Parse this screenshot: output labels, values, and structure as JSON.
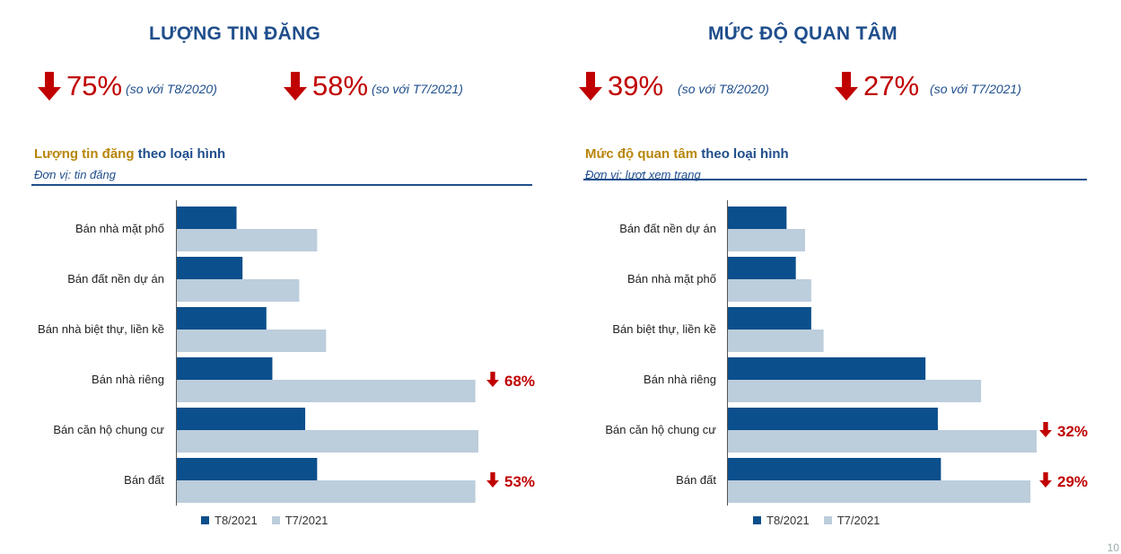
{
  "colors": {
    "t8": "#0b4f8c",
    "t7": "#bccddc",
    "accent_red": "#c00000",
    "title_blue": "#1f4e8c",
    "title_gold": "#b8860b"
  },
  "left": {
    "heading": "LƯỢNG TIN ĐĂNG",
    "stats": [
      {
        "value": "75%",
        "note": "(so với T8/2020)",
        "icon": "down-arrow-icon"
      },
      {
        "value": "58%",
        "note": "(so với T7/2021)",
        "icon": "down-arrow-icon"
      }
    ],
    "chart_title_part1": "Lượng tin đăng",
    "chart_title_part2": " theo loại hình",
    "unit": "Đơn vị: tin đăng"
  },
  "right": {
    "heading": "MỨC ĐỘ QUAN TÂM",
    "stats": [
      {
        "value": "39%",
        "note": "(so với T8/2020)",
        "icon": "down-arrow-icon"
      },
      {
        "value": "27%",
        "note": "(so với T7/2021)",
        "icon": "down-arrow-icon"
      }
    ],
    "chart_title_part1": "Mức độ quan tâm",
    "chart_title_part2": " theo loại hình",
    "unit": "Đơn vị: lượt xem trang"
  },
  "legend": {
    "t8": "T8/2021",
    "t7": "T7/2021"
  },
  "chart_data": [
    {
      "type": "bar",
      "orientation": "horizontal",
      "categories": [
        "Bán nhà mặt phố",
        "Bán đất nền dự án",
        "Bán nhà biệt thự, liền kề",
        "Bán nhà riêng",
        "Bán căn hộ chung cư",
        "Bán đất"
      ],
      "series": [
        {
          "name": "T8/2021",
          "values": [
            20,
            22,
            30,
            32,
            43,
            47
          ]
        },
        {
          "name": "T7/2021",
          "values": [
            47,
            41,
            50,
            100,
            101,
            100
          ]
        }
      ],
      "xlim": [
        0,
        101
      ],
      "grid": false,
      "legend": "bottom",
      "annotations": [
        {
          "category": "Bán nhà riêng",
          "text": "68%",
          "icon": "down-arrow-icon"
        },
        {
          "category": "Bán đất",
          "text": "53%",
          "icon": "down-arrow-icon"
        }
      ]
    },
    {
      "type": "bar",
      "orientation": "horizontal",
      "categories": [
        "Bán đất nền dự án",
        "Bán nhà mặt phố",
        "Bán biệt thự, liền kề",
        "Bán nhà riêng",
        "Bán căn hộ chung cư",
        "Bán đất"
      ],
      "series": [
        {
          "name": "T8/2021",
          "values": [
            19,
            22,
            27,
            64,
            68,
            69
          ]
        },
        {
          "name": "T7/2021",
          "values": [
            25,
            27,
            31,
            82,
            100,
            98
          ]
        }
      ],
      "xlim": [
        0,
        100
      ],
      "grid": false,
      "legend": "bottom",
      "annotations": [
        {
          "category": "Bán căn hộ chung cư",
          "text": "32%",
          "icon": "down-arrow-icon"
        },
        {
          "category": "Bán đất",
          "text": "29%",
          "icon": "down-arrow-icon"
        }
      ]
    }
  ],
  "page_number": "10"
}
